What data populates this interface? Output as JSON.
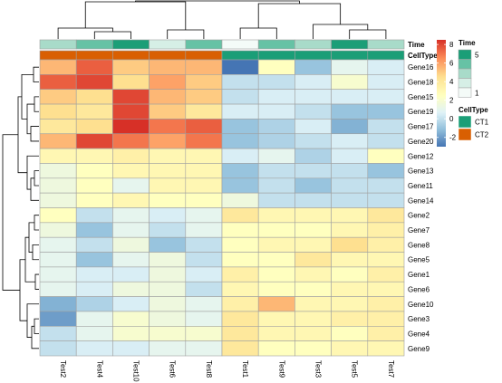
{
  "chart_data": {
    "type": "heatmap",
    "columns": [
      "Test2",
      "Test4",
      "Test10",
      "Test6",
      "Test8",
      "Test1",
      "Test9",
      "Test3",
      "Test5",
      "Test7"
    ],
    "rows": [
      "Gene16",
      "Gene18",
      "Gene15",
      "Gene19",
      "Gene17",
      "Gene20",
      "Gene12",
      "Gene13",
      "Gene11",
      "Gene14",
      "Gene2",
      "Gene7",
      "Gene8",
      "Gene5",
      "Gene1",
      "Gene6",
      "Gene10",
      "Gene3",
      "Gene4",
      "Gene9"
    ],
    "values": [
      [
        5.5,
        7.5,
        5.0,
        5.5,
        5.5,
        -3.0,
        2.5,
        -1.0,
        1.0,
        0.5
      ],
      [
        7.5,
        8.0,
        4.5,
        6.0,
        5.0,
        0.0,
        0.0,
        0.5,
        2.0,
        0.5
      ],
      [
        5.0,
        4.5,
        8.0,
        5.5,
        5.0,
        0.0,
        0.5,
        0.5,
        0.5,
        0.5
      ],
      [
        4.5,
        4.0,
        8.0,
        5.0,
        4.0,
        0.5,
        0.5,
        0.0,
        -1.0,
        -1.0
      ],
      [
        4.0,
        4.5,
        8.5,
        7.0,
        7.5,
        -1.0,
        -0.5,
        0.5,
        -1.5,
        0.0
      ],
      [
        5.5,
        8.0,
        7.0,
        6.0,
        7.0,
        -1.0,
        -0.5,
        0.0,
        0.5,
        0.0
      ],
      [
        3.0,
        3.0,
        3.5,
        3.0,
        3.0,
        0.5,
        1.0,
        -0.5,
        0.5,
        2.5
      ],
      [
        1.5,
        2.5,
        3.0,
        3.0,
        3.0,
        -1.0,
        0.0,
        0.0,
        0.0,
        -1.0
      ],
      [
        1.5,
        2.5,
        1.0,
        3.0,
        3.0,
        -1.0,
        0.0,
        -1.0,
        0.0,
        0.0
      ],
      [
        1.5,
        2.5,
        3.0,
        2.5,
        2.5,
        1.5,
        0.0,
        0.0,
        0.0,
        0.0
      ],
      [
        2.5,
        0.0,
        1.0,
        0.5,
        1.0,
        4.0,
        3.0,
        3.0,
        3.0,
        4.0
      ],
      [
        1.5,
        -1.0,
        1.0,
        0.0,
        1.0,
        2.5,
        2.5,
        2.5,
        3.0,
        3.5
      ],
      [
        1.0,
        0.0,
        1.5,
        -1.0,
        0.0,
        2.5,
        3.0,
        3.0,
        4.5,
        3.5
      ],
      [
        1.0,
        -1.0,
        1.0,
        1.5,
        0.0,
        2.5,
        2.5,
        4.0,
        3.0,
        3.0
      ],
      [
        1.0,
        0.5,
        0.5,
        1.5,
        0.5,
        3.5,
        2.5,
        3.0,
        2.5,
        3.5
      ],
      [
        1.0,
        0.5,
        1.5,
        1.5,
        0.0,
        3.0,
        2.5,
        2.5,
        3.0,
        3.0
      ],
      [
        -1.5,
        -0.5,
        0.5,
        1.5,
        1.0,
        3.5,
        5.5,
        3.0,
        3.0,
        3.5
      ],
      [
        -2.0,
        1.0,
        2.0,
        1.5,
        1.0,
        4.0,
        3.0,
        3.0,
        3.5,
        3.5
      ],
      [
        0.0,
        1.0,
        2.0,
        2.0,
        2.0,
        4.0,
        3.0,
        3.0,
        2.5,
        3.5
      ],
      [
        0.0,
        0.5,
        0.5,
        1.0,
        1.0,
        4.0,
        2.5,
        2.5,
        3.0,
        3.0
      ]
    ],
    "annotations": {
      "Time": [
        "3",
        "4",
        "5",
        "2",
        "4",
        "1",
        "4",
        "3",
        "5",
        "3"
      ],
      "CellType": [
        "CT2",
        "CT2",
        "CT2",
        "CT2",
        "CT2",
        "CT1",
        "CT1",
        "CT1",
        "CT1",
        "CT1"
      ]
    },
    "annotation_labels": [
      "Time",
      "CellType"
    ],
    "legend": {
      "color_scale": {
        "ticks": [
          8,
          6,
          4,
          2,
          0,
          -2
        ],
        "min": -3.0,
        "max": 8.5
      },
      "time": {
        "title": "Time",
        "ticks": [
          "5",
          "1"
        ],
        "levels": [
          "5",
          "4",
          "3",
          "2",
          "1"
        ]
      },
      "celltype": {
        "title": "CellType",
        "levels": [
          "CT1",
          "CT2"
        ]
      }
    },
    "colors": {
      "cells": [
        "#4575b4",
        "#91bfdb",
        "#e0f3f8",
        "#ffffbf",
        "#fee090",
        "#fc8d59",
        "#d73027"
      ],
      "time": {
        "5": "#1b9e77",
        "4": "#66c2a5",
        "3": "#a8dbc9",
        "2": "#d6efe6",
        "1": "#f4fbf8"
      },
      "celltype": {
        "CT1": "#1b9e77",
        "CT2": "#d95f02"
      },
      "cell_border": "#a0a0a0",
      "dendrogram": "#000000"
    }
  }
}
